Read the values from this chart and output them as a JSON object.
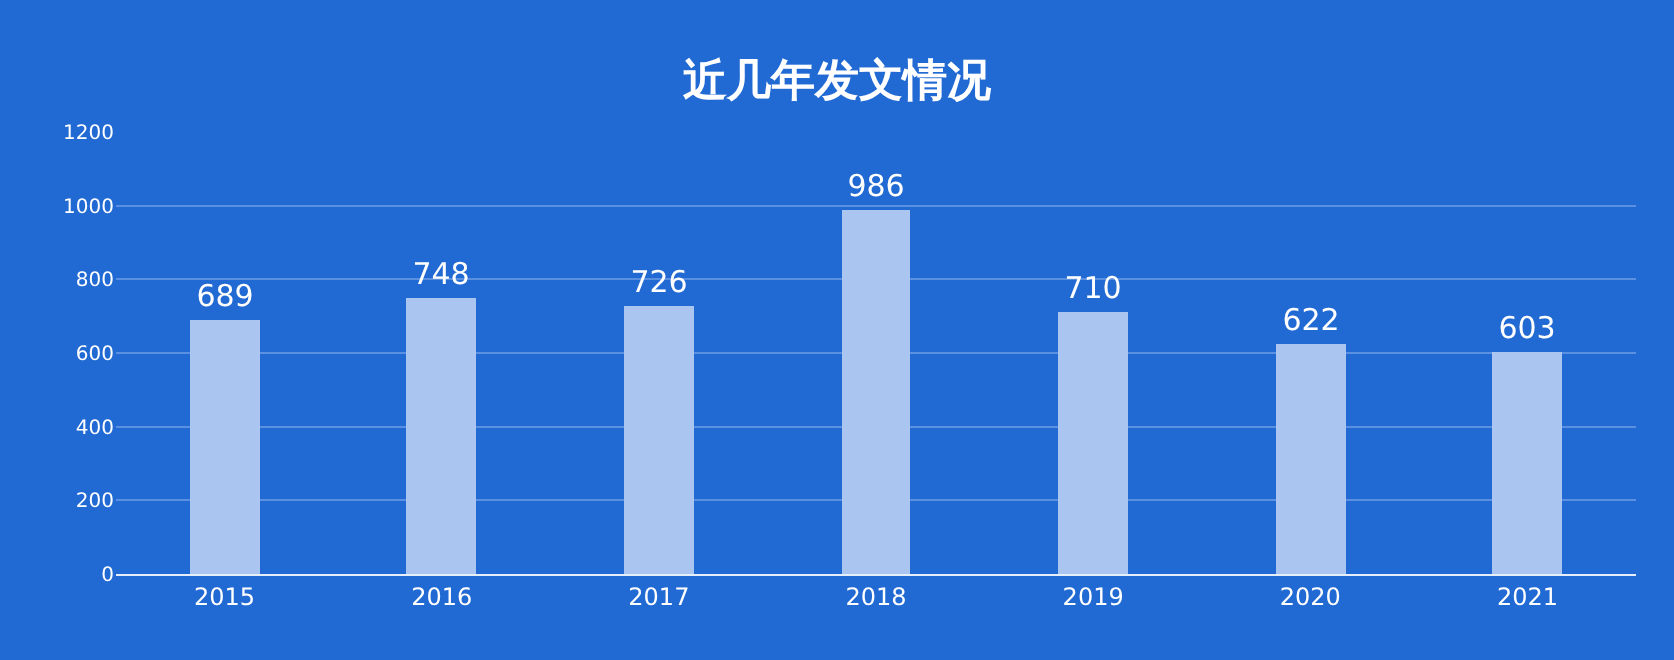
{
  "chart_data": {
    "type": "bar",
    "title": "近几年发文情况",
    "categories": [
      "2015",
      "2016",
      "2017",
      "2018",
      "2019",
      "2020",
      "2021"
    ],
    "values": [
      689,
      748,
      726,
      986,
      710,
      622,
      603
    ],
    "color": "#aac5ef",
    "ylim": [
      0,
      1200
    ],
    "yticks": [
      0,
      200,
      400,
      600,
      800,
      1000,
      1200
    ],
    "grid": "y",
    "data_labels": true
  }
}
